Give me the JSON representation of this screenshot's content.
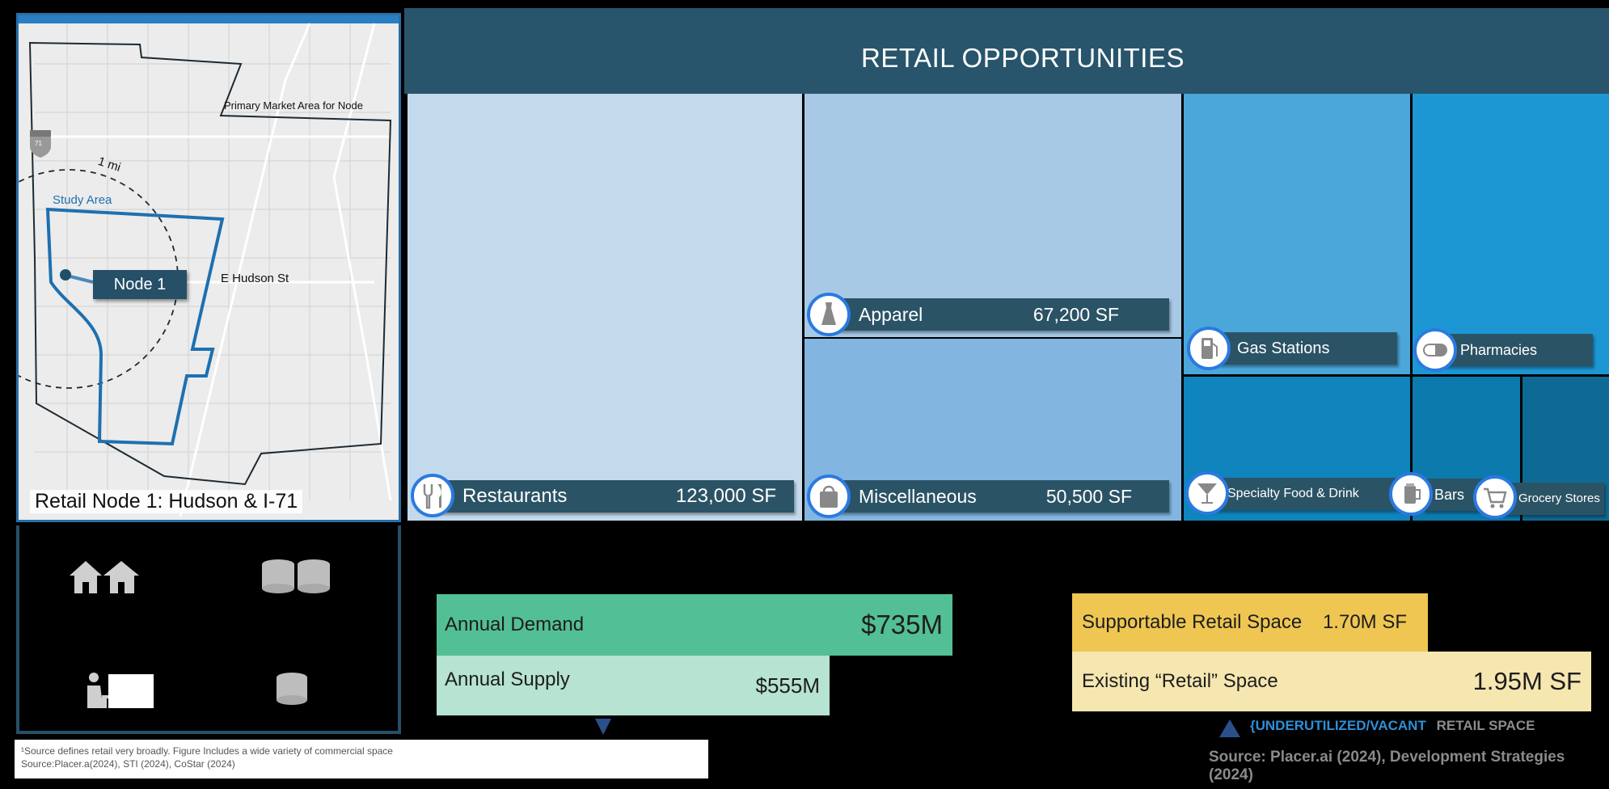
{
  "map": {
    "title": "Retail Node 1: Hudson & I-71",
    "primary_market_label": "Primary Market Area for Node",
    "radius_label": "1 mi",
    "study_area_label": "Study Area",
    "street_label": "E Hudson St",
    "node_label": "Node 1",
    "highway_shield": "71"
  },
  "stats": {
    "icons": [
      "houses-icon",
      "coins-icon",
      "worker-desk-icon",
      "coin-stack-icon"
    ]
  },
  "header": {
    "title": "RETAIL OPPORTUNITIES"
  },
  "treemap": {
    "restaurants": {
      "label": "Restaurants",
      "value": "123,000 SF",
      "color": "#c3d9ec",
      "icon": "utensils-icon"
    },
    "apparel": {
      "label": "Apparel",
      "value": "67,200 SF",
      "color": "#a7c9e6",
      "icon": "dress-icon"
    },
    "miscellaneous": {
      "label": "Miscellaneous",
      "value": "50,500 SF",
      "color": "#82b6e0",
      "icon": "shopping-bag-icon"
    },
    "gas_stations": {
      "label": "Gas Stations",
      "color": "#4ba6da",
      "icon": "fuel-pump-icon"
    },
    "pharmacies": {
      "label": "Pharmacies",
      "color": "#1d97d4",
      "icon": "pill-icon"
    },
    "specialty_food": {
      "label": "Specialty Food & Drink",
      "color": "#0f84bd",
      "icon": "cocktail-icon"
    },
    "bars": {
      "label": "Bars",
      "color": "#0d7aae",
      "icon": "beer-icon"
    },
    "grocery": {
      "label": "Grocery Stores",
      "color": "#0e6a94",
      "icon": "cart-icon"
    }
  },
  "demand_supply": {
    "annual_demand": {
      "label": "Annual Demand",
      "value": "$735M",
      "color": "#53bf95"
    },
    "annual_supply": {
      "label": "Annual Supply",
      "value": "$555M",
      "color": "#b6e3d2"
    }
  },
  "space": {
    "supportable": {
      "label": "Supportable Retail Space",
      "value": "1.70M SF",
      "color": "#eec651"
    },
    "existing": {
      "label": "Existing “Retail” Space",
      "value": "1.95M SF",
      "color": "#f6e6b0"
    }
  },
  "legend": {
    "highlight": "{UNDERUTILIZED/VACANT",
    "rest": "RETAIL SPACE"
  },
  "footnote": {
    "line1": "¹Source defines retail very broadly. Figure Includes a wide variety of commercial space",
    "line2": "Source:Placer.a(2024), STI (2024), CoStar (2024)"
  },
  "source_right": "Source: Placer.ai (2024), Development Strategies (2024)"
}
